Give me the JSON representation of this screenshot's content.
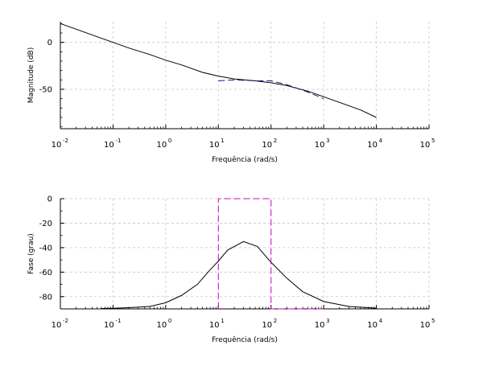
{
  "chart_data": [
    {
      "type": "line",
      "xscale": "log",
      "xlim": [
        0.01,
        100000
      ],
      "ylim": [
        -92,
        22
      ],
      "grid": true,
      "xlabel": "Frequência (rad/s)",
      "ylabel": "Magnitude (dB)",
      "xtick_mantissa": "10",
      "xtick_exponents": [
        "-2",
        "-1",
        "0",
        "1",
        "2",
        "3",
        "4",
        "5"
      ],
      "ytick_values": [
        0,
        -50
      ],
      "series": [
        {
          "color": "#000000",
          "style": "solid",
          "x": [
            0.01,
            0.02,
            0.05,
            0.1,
            0.2,
            0.5,
            1,
            2,
            5,
            10,
            20,
            50,
            100,
            200,
            500,
            1000,
            2000,
            5000,
            10000
          ],
          "y": [
            20,
            14,
            6,
            0,
            -6,
            -13,
            -19,
            -24,
            -32,
            -36,
            -39,
            -41,
            -43,
            -46,
            -52,
            -58,
            -64,
            -72,
            -80
          ]
        },
        {
          "color": "#1a1a8c",
          "style": "dashed",
          "x": [
            10,
            20,
            50,
            100,
            200,
            500,
            1000
          ],
          "y": [
            -41,
            -40,
            -41,
            -41,
            -45,
            -53,
            -60
          ]
        }
      ]
    },
    {
      "type": "line",
      "xscale": "log",
      "xlim": [
        0.01,
        100000
      ],
      "ylim": [
        -90,
        0
      ],
      "grid": true,
      "xlabel": "Frequência (rad/s)",
      "ylabel": "Fase (grau)",
      "xtick_mantissa": "10",
      "xtick_exponents": [
        "-2",
        "-1",
        "0",
        "1",
        "2",
        "3",
        "4",
        "5"
      ],
      "ytick_values": [
        0,
        -20,
        -40,
        -60,
        -80
      ],
      "series": [
        {
          "color": "#000000",
          "style": "solid",
          "x": [
            0.06,
            0.1,
            0.2,
            0.5,
            1,
            2,
            4,
            7,
            10,
            15,
            30,
            55,
            100,
            200,
            400,
            1000,
            3000,
            10000
          ],
          "y": [
            -89.7,
            -89.5,
            -89,
            -88,
            -85,
            -79,
            -70,
            -58,
            -51,
            -42,
            -35,
            -39,
            -52,
            -65,
            -76,
            -84,
            -88,
            -89.4
          ]
        },
        {
          "color": "#cc00cc",
          "style": "dashed",
          "x": [
            10,
            10,
            100,
            100,
            1000
          ],
          "y": [
            -90,
            0,
            0,
            -90,
            -90
          ]
        }
      ]
    }
  ]
}
